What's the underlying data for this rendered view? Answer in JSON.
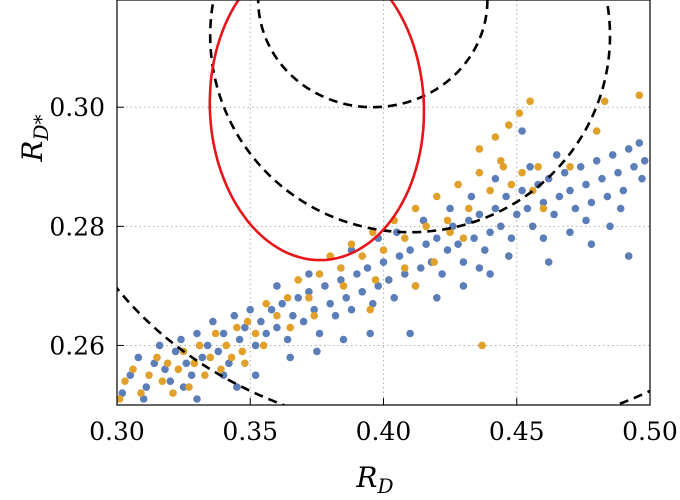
{
  "chart_data": {
    "type": "scatter",
    "title": "",
    "xlabel": "R",
    "xlabel_sub": "D",
    "ylabel": "R",
    "ylabel_sub": "D*",
    "xlim": [
      0.3,
      0.5
    ],
    "ylim": [
      0.25,
      0.318
    ],
    "xticks": [
      "0.30",
      "0.35",
      "0.40",
      "0.45",
      "0.50"
    ],
    "yticks": [
      "0.26",
      "0.28",
      "0.30"
    ],
    "grid": true,
    "colors": {
      "blue_points": "#5b7db8",
      "orange_points": "#e0a02a",
      "red_contour": "#e8141a",
      "dashed_contours": "#000000",
      "grid": "#b0b0b0"
    },
    "series": [
      {
        "values": [
          [
            0.302,
            0.252
          ],
          [
            0.305,
            0.255
          ],
          [
            0.308,
            0.258
          ],
          [
            0.311,
            0.253
          ],
          [
            0.314,
            0.257
          ],
          [
            0.316,
            0.26
          ],
          [
            0.318,
            0.256
          ],
          [
            0.32,
            0.254
          ],
          [
            0.322,
            0.259
          ],
          [
            0.324,
            0.261
          ],
          [
            0.326,
            0.257
          ],
          [
            0.328,
            0.255
          ],
          [
            0.33,
            0.262
          ],
          [
            0.332,
            0.258
          ],
          [
            0.334,
            0.26
          ],
          [
            0.336,
            0.264
          ],
          [
            0.338,
            0.259
          ],
          [
            0.34,
            0.262
          ],
          [
            0.342,
            0.257
          ],
          [
            0.344,
            0.265
          ],
          [
            0.346,
            0.261
          ],
          [
            0.348,
            0.263
          ],
          [
            0.35,
            0.266
          ],
          [
            0.352,
            0.26
          ],
          [
            0.354,
            0.264
          ],
          [
            0.356,
            0.262
          ],
          [
            0.358,
            0.266
          ],
          [
            0.36,
            0.263
          ],
          [
            0.362,
            0.267
          ],
          [
            0.364,
            0.261
          ],
          [
            0.366,
            0.265
          ],
          [
            0.368,
            0.268
          ],
          [
            0.37,
            0.264
          ],
          [
            0.372,
            0.269
          ],
          [
            0.374,
            0.266
          ],
          [
            0.376,
            0.262
          ],
          [
            0.378,
            0.27
          ],
          [
            0.38,
            0.267
          ],
          [
            0.382,
            0.265
          ],
          [
            0.384,
            0.271
          ],
          [
            0.386,
            0.268
          ],
          [
            0.388,
            0.266
          ],
          [
            0.39,
            0.272
          ],
          [
            0.392,
            0.269
          ],
          [
            0.394,
            0.273
          ],
          [
            0.396,
            0.267
          ],
          [
            0.398,
            0.27
          ],
          [
            0.4,
            0.274
          ],
          [
            0.402,
            0.271
          ],
          [
            0.404,
            0.268
          ],
          [
            0.406,
            0.275
          ],
          [
            0.408,
            0.272
          ],
          [
            0.41,
            0.276
          ],
          [
            0.412,
            0.27
          ],
          [
            0.414,
            0.273
          ],
          [
            0.416,
            0.277
          ],
          [
            0.418,
            0.274
          ],
          [
            0.42,
            0.278
          ],
          [
            0.422,
            0.272
          ],
          [
            0.424,
            0.276
          ],
          [
            0.426,
            0.28
          ],
          [
            0.428,
            0.277
          ],
          [
            0.43,
            0.274
          ],
          [
            0.432,
            0.281
          ],
          [
            0.434,
            0.278
          ],
          [
            0.436,
            0.282
          ],
          [
            0.438,
            0.276
          ],
          [
            0.44,
            0.279
          ],
          [
            0.442,
            0.283
          ],
          [
            0.444,
            0.28
          ],
          [
            0.446,
            0.285
          ],
          [
            0.448,
            0.278
          ],
          [
            0.45,
            0.282
          ],
          [
            0.452,
            0.286
          ],
          [
            0.454,
            0.283
          ],
          [
            0.456,
            0.28
          ],
          [
            0.458,
            0.287
          ],
          [
            0.46,
            0.284
          ],
          [
            0.462,
            0.288
          ],
          [
            0.464,
            0.282
          ],
          [
            0.466,
            0.285
          ],
          [
            0.468,
            0.289
          ],
          [
            0.47,
            0.286
          ],
          [
            0.472,
            0.283
          ],
          [
            0.474,
            0.29
          ],
          [
            0.476,
            0.287
          ],
          [
            0.478,
            0.284
          ],
          [
            0.48,
            0.291
          ],
          [
            0.482,
            0.288
          ],
          [
            0.484,
            0.285
          ],
          [
            0.486,
            0.292
          ],
          [
            0.488,
            0.289
          ],
          [
            0.49,
            0.286
          ],
          [
            0.492,
            0.293
          ],
          [
            0.494,
            0.29
          ],
          [
            0.496,
            0.294
          ],
          [
            0.498,
            0.291
          ],
          [
            0.42,
            0.268
          ],
          [
            0.43,
            0.27
          ],
          [
            0.41,
            0.262
          ],
          [
            0.395,
            0.262
          ],
          [
            0.44,
            0.272
          ],
          [
            0.46,
            0.278
          ],
          [
            0.478,
            0.277
          ],
          [
            0.492,
            0.275
          ],
          [
            0.385,
            0.261
          ],
          [
            0.375,
            0.259
          ],
          [
            0.365,
            0.258
          ],
          [
            0.352,
            0.255
          ],
          [
            0.345,
            0.253
          ],
          [
            0.452,
            0.296
          ],
          [
            0.47,
            0.279
          ],
          [
            0.485,
            0.28
          ],
          [
            0.505,
            0.292
          ],
          [
            0.33,
            0.251
          ],
          [
            0.31,
            0.251
          ],
          [
            0.325,
            0.253
          ],
          [
            0.34,
            0.255
          ],
          [
            0.36,
            0.27
          ],
          [
            0.388,
            0.276
          ],
          [
            0.405,
            0.279
          ],
          [
            0.415,
            0.281
          ],
          [
            0.398,
            0.278
          ],
          [
            0.372,
            0.272
          ],
          [
            0.436,
            0.273
          ],
          [
            0.447,
            0.275
          ],
          [
            0.462,
            0.274
          ],
          [
            0.476,
            0.281
          ],
          [
            0.489,
            0.283
          ],
          [
            0.497,
            0.288
          ],
          [
            0.442,
            0.288
          ],
          [
            0.425,
            0.283
          ],
          [
            0.455,
            0.29
          ],
          [
            0.465,
            0.292
          ],
          [
            0.433,
            0.285
          ]
        ]
      },
      {
        "values": [
          [
            0.301,
            0.251
          ],
          [
            0.303,
            0.254
          ],
          [
            0.306,
            0.256
          ],
          [
            0.309,
            0.252
          ],
          [
            0.312,
            0.255
          ],
          [
            0.315,
            0.258
          ],
          [
            0.317,
            0.254
          ],
          [
            0.319,
            0.257
          ],
          [
            0.321,
            0.252
          ],
          [
            0.323,
            0.256
          ],
          [
            0.325,
            0.259
          ],
          [
            0.327,
            0.253
          ],
          [
            0.329,
            0.257
          ],
          [
            0.331,
            0.26
          ],
          [
            0.333,
            0.255
          ],
          [
            0.335,
            0.258
          ],
          [
            0.337,
            0.262
          ],
          [
            0.339,
            0.256
          ],
          [
            0.341,
            0.26
          ],
          [
            0.343,
            0.258
          ],
          [
            0.345,
            0.263
          ],
          [
            0.347,
            0.259
          ],
          [
            0.349,
            0.264
          ],
          [
            0.352,
            0.262
          ],
          [
            0.356,
            0.267
          ],
          [
            0.36,
            0.265
          ],
          [
            0.364,
            0.268
          ],
          [
            0.368,
            0.271
          ],
          [
            0.372,
            0.268
          ],
          [
            0.376,
            0.272
          ],
          [
            0.38,
            0.275
          ],
          [
            0.384,
            0.273
          ],
          [
            0.388,
            0.277
          ],
          [
            0.392,
            0.275
          ],
          [
            0.396,
            0.279
          ],
          [
            0.4,
            0.276
          ],
          [
            0.404,
            0.281
          ],
          [
            0.408,
            0.278
          ],
          [
            0.412,
            0.283
          ],
          [
            0.416,
            0.28
          ],
          [
            0.42,
            0.285
          ],
          [
            0.424,
            0.281
          ],
          [
            0.428,
            0.287
          ],
          [
            0.432,
            0.283
          ],
          [
            0.436,
            0.289
          ],
          [
            0.44,
            0.286
          ],
          [
            0.444,
            0.291
          ],
          [
            0.448,
            0.287
          ],
          [
            0.452,
            0.289
          ],
          [
            0.456,
            0.286
          ],
          [
            0.46,
            0.283
          ],
          [
            0.436,
            0.293
          ],
          [
            0.442,
            0.295
          ],
          [
            0.447,
            0.297
          ],
          [
            0.451,
            0.299
          ],
          [
            0.455,
            0.301
          ],
          [
            0.445,
            0.29
          ],
          [
            0.458,
            0.29
          ],
          [
            0.483,
            0.301
          ],
          [
            0.496,
            0.302
          ],
          [
            0.47,
            0.29
          ],
          [
            0.48,
            0.296
          ],
          [
            0.503,
            0.288
          ],
          [
            0.397,
            0.271
          ],
          [
            0.374,
            0.265
          ],
          [
            0.365,
            0.263
          ],
          [
            0.408,
            0.273
          ],
          [
            0.43,
            0.278
          ],
          [
            0.419,
            0.274
          ],
          [
            0.355,
            0.26
          ],
          [
            0.348,
            0.257
          ],
          [
            0.395,
            0.266
          ],
          [
            0.425,
            0.279
          ],
          [
            0.437,
            0.26
          ],
          [
            0.385,
            0.27
          ],
          [
            0.412,
            0.27
          ]
        ]
      }
    ]
  }
}
